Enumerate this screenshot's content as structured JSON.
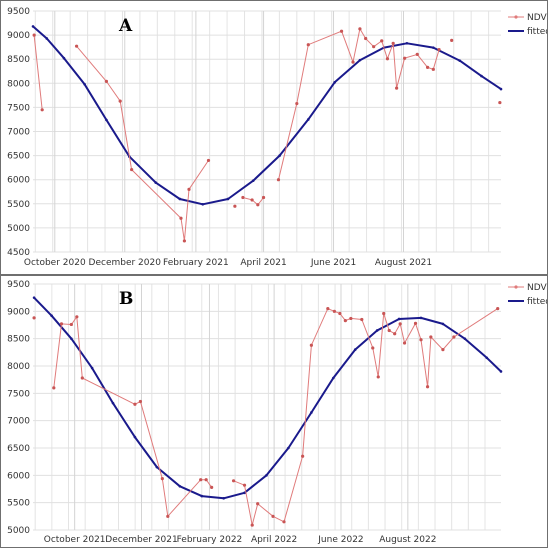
{
  "chart_data": [
    {
      "type": "line",
      "panel_label": "A",
      "ylim": [
        4500,
        9500
      ],
      "yticks": [
        "4500",
        "5000",
        "5500",
        "6000",
        "6500",
        "7000",
        "7500",
        "8000",
        "8500",
        "9000",
        "9500"
      ],
      "x_domain": [
        "2020-09-12",
        "2021-10-25"
      ],
      "xticks": [
        {
          "date": "2020-10-01",
          "label": "October 2020"
        },
        {
          "date": "2020-12-01",
          "label": "December 2020"
        },
        {
          "date": "2021-02-01",
          "label": "February 2021"
        },
        {
          "date": "2021-04-01",
          "label": "April 2021"
        },
        {
          "date": "2021-06-01",
          "label": "June 2021"
        },
        {
          "date": "2021-08-01",
          "label": "August 2021"
        }
      ],
      "legend": {
        "position": "top-right"
      },
      "grid": true,
      "colors": {
        "ndvi": "#e07b7b",
        "fitted": "#1a1a8c"
      },
      "series": [
        {
          "name": "NDVI",
          "segments": [
            [
              [
                "2020-09-13",
                9000
              ],
              [
                "2020-09-20",
                7450
              ]
            ],
            [
              [
                "2020-10-20",
                8770
              ],
              [
                "2020-11-15",
                8040
              ],
              [
                "2020-11-27",
                7630
              ],
              [
                "2020-12-07",
                6210
              ],
              [
                "2021-01-19",
                5200
              ],
              [
                "2021-01-22",
                4730
              ],
              [
                "2021-01-26",
                5800
              ],
              [
                "2021-02-12",
                6400
              ]
            ],
            [
              [
                "2021-03-07",
                5450
              ]
            ],
            [
              [
                "2021-03-14",
                5630
              ],
              [
                "2021-03-22",
                5580
              ],
              [
                "2021-03-27",
                5480
              ],
              [
                "2021-04-01",
                5630
              ]
            ],
            [
              [
                "2021-04-14",
                6000
              ],
              [
                "2021-04-30",
                7580
              ],
              [
                "2021-05-10",
                8800
              ],
              [
                "2021-06-08",
                9080
              ],
              [
                "2021-06-18",
                8440
              ],
              [
                "2021-06-24",
                9130
              ],
              [
                "2021-06-29",
                8930
              ],
              [
                "2021-07-06",
                8760
              ],
              [
                "2021-07-13",
                8880
              ],
              [
                "2021-07-18",
                8510
              ],
              [
                "2021-07-23",
                8830
              ],
              [
                "2021-07-26",
                7900
              ],
              [
                "2021-08-02",
                8520
              ],
              [
                "2021-08-13",
                8600
              ],
              [
                "2021-08-22",
                8330
              ],
              [
                "2021-08-27",
                8290
              ],
              [
                "2021-09-01",
                8700
              ]
            ],
            [
              [
                "2021-09-12",
                8890
              ]
            ],
            [
              [
                "2021-10-24",
                7600
              ]
            ]
          ]
        },
        {
          "name": "fitted",
          "points": [
            [
              "2020-09-12",
              9180
            ],
            [
              "2020-09-24",
              8930
            ],
            [
              "2020-10-09",
              8520
            ],
            [
              "2020-10-27",
              7980
            ],
            [
              "2020-11-15",
              7240
            ],
            [
              "2020-12-05",
              6480
            ],
            [
              "2020-12-28",
              5940
            ],
            [
              "2021-01-18",
              5600
            ],
            [
              "2021-02-07",
              5490
            ],
            [
              "2021-03-01",
              5600
            ],
            [
              "2021-03-23",
              5980
            ],
            [
              "2021-04-15",
              6500
            ],
            [
              "2021-05-10",
              7250
            ],
            [
              "2021-06-02",
              8020
            ],
            [
              "2021-06-24",
              8480
            ],
            [
              "2021-07-15",
              8740
            ],
            [
              "2021-08-04",
              8830
            ],
            [
              "2021-08-27",
              8740
            ],
            [
              "2021-09-19",
              8470
            ],
            [
              "2021-10-08",
              8150
            ],
            [
              "2021-10-25",
              7880
            ]
          ]
        }
      ]
    },
    {
      "type": "line",
      "panel_label": "B",
      "ylim": [
        5000,
        9500
      ],
      "yticks": [
        "5000",
        "5500",
        "6000",
        "6500",
        "7000",
        "7500",
        "8000",
        "8500",
        "9000",
        "9500"
      ],
      "x_domain": [
        "2021-08-24",
        "2022-10-25"
      ],
      "xticks": [
        {
          "date": "2021-10-01",
          "label": "October 2021"
        },
        {
          "date": "2021-12-01",
          "label": "December 2021"
        },
        {
          "date": "2022-02-01",
          "label": "February 2022"
        },
        {
          "date": "2022-04-01",
          "label": "April 2022"
        },
        {
          "date": "2022-06-01",
          "label": "June 2022"
        },
        {
          "date": "2022-08-01",
          "label": "August 2022"
        }
      ],
      "legend": {
        "position": "top-right"
      },
      "grid": true,
      "colors": {
        "ndvi": "#e07b7b",
        "fitted": "#1a1a8c"
      },
      "series": [
        {
          "name": "NDVI",
          "segments": [
            [
              [
                "2021-08-25",
                8880
              ]
            ],
            [
              [
                "2021-09-12",
                7600
              ],
              [
                "2021-09-19",
                8770
              ],
              [
                "2021-09-28",
                8760
              ],
              [
                "2021-10-03",
                8900
              ],
              [
                "2021-10-08",
                7780
              ],
              [
                "2021-11-25",
                7300
              ],
              [
                "2021-11-30",
                7350
              ],
              [
                "2021-12-20",
                5940
              ],
              [
                "2021-12-25",
                5250
              ],
              [
                "2022-01-24",
                5920
              ],
              [
                "2022-01-29",
                5920
              ],
              [
                "2022-02-03",
                5780
              ]
            ],
            [
              [
                "2022-02-23",
                5900
              ],
              [
                "2022-03-05",
                5820
              ],
              [
                "2022-03-12",
                5090
              ],
              [
                "2022-03-17",
                5480
              ],
              [
                "2022-03-31",
                5250
              ],
              [
                "2022-04-10",
                5150
              ],
              [
                "2022-04-27",
                6350
              ],
              [
                "2022-05-05",
                8380
              ],
              [
                "2022-05-20",
                9050
              ],
              [
                "2022-05-26",
                9000
              ],
              [
                "2022-05-31",
                8960
              ],
              [
                "2022-06-05",
                8830
              ],
              [
                "2022-06-10",
                8870
              ],
              [
                "2022-06-20",
                8850
              ],
              [
                "2022-06-30",
                8330
              ],
              [
                "2022-07-05",
                7800
              ],
              [
                "2022-07-10",
                8960
              ],
              [
                "2022-07-15",
                8650
              ],
              [
                "2022-07-20",
                8590
              ],
              [
                "2022-07-25",
                8770
              ],
              [
                "2022-07-29",
                8420
              ],
              [
                "2022-08-08",
                8780
              ],
              [
                "2022-08-13",
                8480
              ],
              [
                "2022-08-19",
                7620
              ],
              [
                "2022-08-22",
                8530
              ],
              [
                "2022-09-02",
                8300
              ],
              [
                "2022-09-12",
                8530
              ],
              [
                "2022-10-22",
                9050
              ]
            ]
          ]
        },
        {
          "name": "fitted",
          "points": [
            [
              "2021-08-25",
              9250
            ],
            [
              "2021-09-10",
              8920
            ],
            [
              "2021-09-28",
              8500
            ],
            [
              "2021-10-17",
              7960
            ],
            [
              "2021-11-05",
              7320
            ],
            [
              "2021-11-25",
              6700
            ],
            [
              "2021-12-15",
              6150
            ],
            [
              "2022-01-05",
              5800
            ],
            [
              "2022-01-25",
              5620
            ],
            [
              "2022-02-14",
              5580
            ],
            [
              "2022-03-05",
              5680
            ],
            [
              "2022-03-25",
              6000
            ],
            [
              "2022-04-14",
              6500
            ],
            [
              "2022-05-05",
              7150
            ],
            [
              "2022-05-25",
              7780
            ],
            [
              "2022-06-14",
              8300
            ],
            [
              "2022-07-04",
              8650
            ],
            [
              "2022-07-24",
              8860
            ],
            [
              "2022-08-13",
              8880
            ],
            [
              "2022-09-02",
              8770
            ],
            [
              "2022-09-22",
              8500
            ],
            [
              "2022-10-12",
              8150
            ],
            [
              "2022-10-25",
              7900
            ]
          ]
        }
      ]
    }
  ]
}
